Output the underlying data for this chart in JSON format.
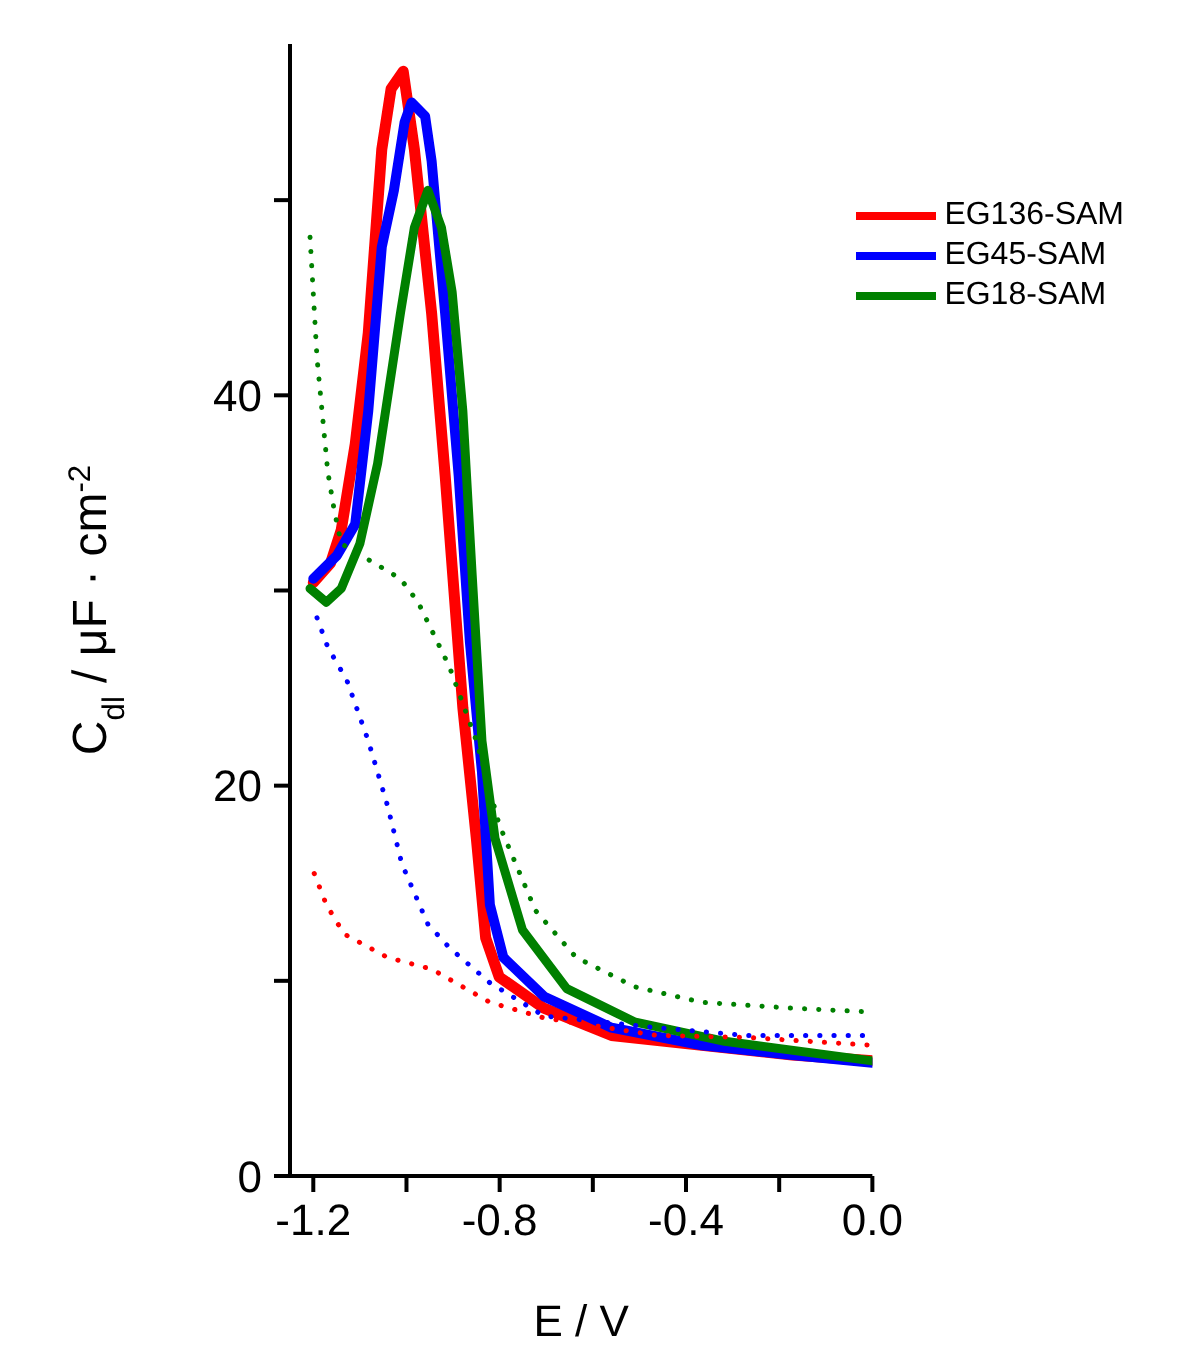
{
  "chart_data": {
    "type": "line",
    "xlabel": "E / V",
    "ylabel": "C$_{dl}$ / μF · cm$^{-2}$",
    "xlim": [
      -1.25,
      0.0
    ],
    "ylim": [
      0,
      58
    ],
    "xticks": [
      -1.2,
      {
        "value": -1.0,
        "label": null
      },
      -0.8,
      {
        "value": -0.6,
        "label": null
      },
      -0.4,
      {
        "value": -0.2,
        "label": null
      },
      {
        "value": 0,
        "label": "0.0"
      }
    ],
    "yticks": [
      0,
      {
        "value": 10,
        "label": null
      },
      20,
      {
        "value": 30,
        "label": null
      },
      40,
      {
        "value": 50,
        "label": null
      }
    ],
    "grid": false,
    "legend": "top right",
    "marker": "none",
    "series": [
      {
        "name": "EG136-SAM",
        "color": "#ff0000",
        "line_style": "solid",
        "x": [
          -1.2,
          -1.163,
          -1.14,
          -1.11,
          -1.082,
          -1.053,
          -1.033,
          -1.007,
          -0.983,
          -0.946,
          -0.917,
          -0.879,
          -0.85,
          -0.83,
          -0.801,
          -0.705,
          -0.56,
          -0.366,
          -0.172,
          0.0
        ],
        "values": [
          30.4,
          31.4,
          33.1,
          37.5,
          43.2,
          52.6,
          55.7,
          56.6,
          52.6,
          44.2,
          35.9,
          24.0,
          17.3,
          12.2,
          10.2,
          8.6,
          7.2,
          6.7,
          6.2,
          5.9
        ]
      },
      {
        "name": "EG45-SAM",
        "color": "#0000ff",
        "line_style": "solid",
        "x": [
          -1.2,
          -1.149,
          -1.11,
          -1.082,
          -1.053,
          -1.027,
          -1.004,
          -0.989,
          -0.96,
          -0.946,
          -0.917,
          -0.888,
          -0.864,
          -0.838,
          -0.821,
          -0.792,
          -0.705,
          -0.56,
          -0.366,
          -0.172,
          0.0
        ],
        "values": [
          30.6,
          31.8,
          33.4,
          39.2,
          47.6,
          50.5,
          54.0,
          55.0,
          54.3,
          52.0,
          44.2,
          35.9,
          27.4,
          20.7,
          13.9,
          11.2,
          9.2,
          7.6,
          6.7,
          6.2,
          5.8
        ]
      },
      {
        "name": "EG18-SAM",
        "color": "#008000",
        "line_style": "solid",
        "x": [
          -1.207,
          -1.172,
          -1.14,
          -1.1,
          -1.062,
          -1.013,
          -0.983,
          -0.954,
          -0.925,
          -0.902,
          -0.879,
          -0.859,
          -0.838,
          -0.81,
          -0.751,
          -0.656,
          -0.511,
          -0.317,
          0.0
        ],
        "values": [
          30.1,
          29.4,
          30.1,
          32.4,
          36.5,
          44.2,
          48.6,
          50.5,
          48.6,
          45.3,
          39.2,
          30.8,
          22.3,
          17.3,
          12.6,
          9.6,
          7.9,
          6.9,
          5.9
        ]
      },
      {
        "color": "#008000",
        "line_style": "dotted",
        "x": [
          -1.207,
          -1.192,
          -1.169,
          -1.155,
          -1.14,
          -1.062,
          -1.013,
          -0.975,
          -0.908,
          -0.85,
          -0.801,
          -0.723,
          -0.636,
          -0.511,
          -0.366,
          -0.172,
          0.0
        ],
        "values": [
          48.1,
          41.9,
          36.1,
          34.1,
          32.4,
          31.3,
          30.6,
          29.4,
          26.1,
          22.3,
          18.0,
          13.6,
          11.2,
          9.7,
          8.9,
          8.6,
          8.4
        ]
      },
      {
        "color": "#0000ff",
        "line_style": "dotted",
        "x": [
          -1.192,
          -1.169,
          -1.128,
          -1.082,
          -1.041,
          -1.01,
          -0.954,
          -0.908,
          -0.821,
          -0.705,
          -0.462,
          -0.27,
          0.0
        ],
        "values": [
          28.6,
          27.1,
          25.4,
          22.3,
          19.0,
          16.0,
          12.9,
          11.7,
          9.9,
          8.2,
          7.6,
          7.2,
          7.2
        ]
      },
      {
        "color": "#ff0000",
        "line_style": "dotted",
        "x": [
          -1.198,
          -1.172,
          -1.134,
          -1.041,
          -0.946,
          -0.821,
          -0.705,
          -0.462,
          -0.27,
          0.0
        ],
        "values": [
          15.5,
          13.9,
          12.4,
          11.2,
          10.6,
          8.9,
          8.1,
          7.2,
          7.1,
          6.7
        ]
      }
    ]
  }
}
